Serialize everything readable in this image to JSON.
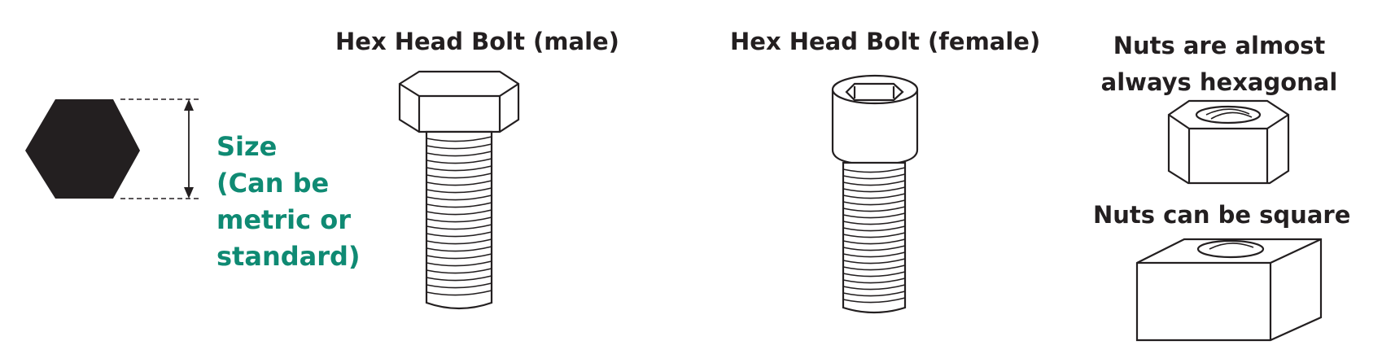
{
  "labels": {
    "male_bolt": "Hex Head Bolt (male)",
    "female_bolt": "Hex Head Bolt (female)",
    "hex_nut_line1": "Nuts are almost",
    "hex_nut_line2": "always hexagonal",
    "square_nut": "Nuts can be square"
  },
  "size_label": {
    "line1": "Size",
    "line2": "(Can be",
    "line3": "metric or",
    "line4": "standard)"
  },
  "colors": {
    "ink": "#231f20",
    "accent": "#0f8a73"
  }
}
